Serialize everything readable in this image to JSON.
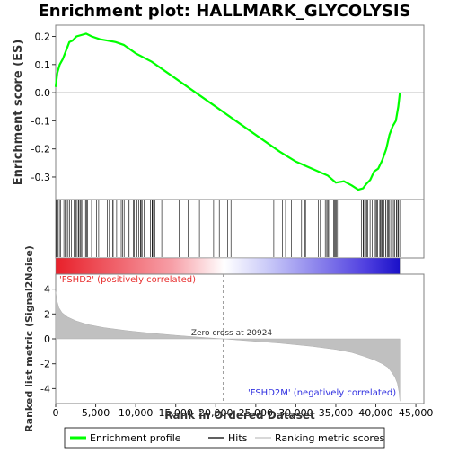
{
  "chart_data": {
    "type": "line",
    "title": "Enrichment plot: HALLMARK_GLYCOLYSIS",
    "xlabel": "Rank in Ordered Dataset",
    "x_ticks": [
      0,
      5000,
      10000,
      15000,
      20000,
      25000,
      30000,
      35000,
      40000,
      45000
    ],
    "x_tick_labels": [
      "0",
      "5,000",
      "10,000",
      "15,000",
      "20,000",
      "25,000",
      "30,000",
      "35,000",
      "40,000",
      "45,000"
    ],
    "xlim": [
      0,
      46000
    ],
    "n_ranks": 43000,
    "es_panel": {
      "ylabel": "Enrichment score (ES)",
      "ylim": [
        -0.38,
        0.24
      ],
      "y_ticks": [
        0.2,
        0.1,
        0.0,
        -0.1,
        -0.2,
        -0.3
      ],
      "y_tick_labels": [
        "0.2",
        "0.1",
        "0.0",
        "-0.1",
        "-0.2",
        "-0.3"
      ],
      "series_name": "Enrichment profile",
      "color": "#00ff00",
      "x": [
        0,
        200,
        500,
        900,
        1300,
        1700,
        2100,
        2600,
        3200,
        3800,
        4500,
        5500,
        6500,
        7500,
        8500,
        10000,
        12000,
        14000,
        16000,
        18000,
        20000,
        22000,
        24000,
        26000,
        28000,
        30000,
        32000,
        34000,
        35000,
        36000,
        37000,
        37800,
        38400,
        38800,
        39300,
        39800,
        40300,
        40800,
        41300,
        41700,
        42100,
        42500,
        42800,
        43000
      ],
      "y": [
        0.02,
        0.07,
        0.1,
        0.12,
        0.15,
        0.18,
        0.185,
        0.2,
        0.205,
        0.21,
        0.2,
        0.19,
        0.185,
        0.18,
        0.17,
        0.14,
        0.11,
        0.07,
        0.03,
        -0.01,
        -0.05,
        -0.09,
        -0.13,
        -0.17,
        -0.21,
        -0.245,
        -0.27,
        -0.295,
        -0.32,
        -0.315,
        -0.33,
        -0.345,
        -0.34,
        -0.325,
        -0.31,
        -0.28,
        -0.27,
        -0.24,
        -0.2,
        -0.15,
        -0.12,
        -0.1,
        -0.05,
        0.0
      ]
    },
    "hits_panel": {
      "series_name": "Hits",
      "density_segments": [
        [
          0,
          4500,
          0.55
        ],
        [
          4500,
          16000,
          0.3
        ],
        [
          16000,
          21000,
          0.12
        ],
        [
          21000,
          23000,
          0.05
        ],
        [
          23000,
          24500,
          0.08
        ],
        [
          24500,
          25800,
          0.02
        ],
        [
          25800,
          33000,
          0.12
        ],
        [
          33000,
          36000,
          0.18
        ],
        [
          36000,
          38000,
          0.08
        ],
        [
          38000,
          43000,
          0.7
        ]
      ]
    },
    "metric_panel": {
      "ylabel": "Ranked list metric (Signal2Noise)",
      "ylim": [
        -5.2,
        5.2
      ],
      "y_ticks": [
        4,
        2,
        0,
        -2,
        -4
      ],
      "y_tick_labels": [
        "4",
        "2",
        "0",
        "-2",
        "-4"
      ],
      "series_name": "Ranking metric scores",
      "x": [
        0,
        150,
        400,
        800,
        1500,
        2500,
        4000,
        6000,
        9000,
        12000,
        15000,
        18000,
        20924,
        24000,
        28000,
        32000,
        35000,
        37000,
        38500,
        39800,
        40800,
        41500,
        42000,
        42400,
        42700,
        42900,
        43000
      ],
      "y": [
        3.8,
        3.1,
        2.5,
        2.1,
        1.75,
        1.45,
        1.15,
        0.9,
        0.65,
        0.45,
        0.28,
        0.13,
        0.0,
        -0.15,
        -0.35,
        -0.6,
        -0.85,
        -1.1,
        -1.4,
        -1.7,
        -2.0,
        -2.3,
        -2.7,
        -3.1,
        -3.6,
        -4.3,
        -5.0
      ],
      "zero_cross_label": "Zero cross at 20924",
      "zero_cross": 20924,
      "positive_label": "'FSHD2' (positively correlated)",
      "negative_label": "'FSHD2M' (negatively correlated)"
    },
    "legend": {
      "placement": "bottom",
      "entries": [
        "Enrichment profile",
        "Hits",
        "Ranking metric scores"
      ]
    },
    "grid": false
  },
  "colors": {
    "enrichment_line": "#00ff00",
    "hits": "#000000",
    "metric_fill": "#c0c0c0",
    "pos_end": "#e8202a",
    "mid": "#ffffff",
    "neg_end": "#1a10c8",
    "pos_label": "#e83030",
    "neg_label": "#3030e0"
  }
}
